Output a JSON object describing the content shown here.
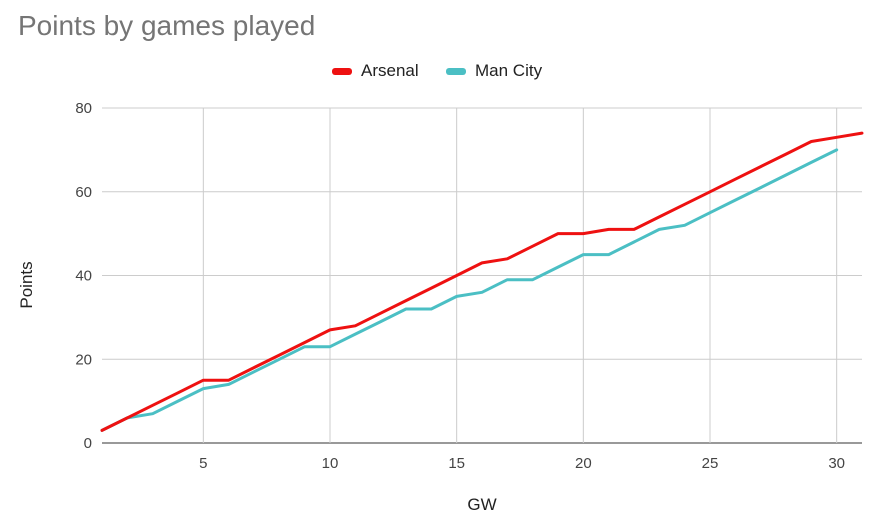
{
  "chart_data": {
    "type": "line",
    "title": "Points by games played",
    "xlabel": "GW",
    "ylabel": "Points",
    "xlim": [
      1,
      31
    ],
    "ylim": [
      0,
      80
    ],
    "xticks": [
      5,
      10,
      15,
      20,
      25,
      30
    ],
    "yticks": [
      0,
      20,
      40,
      60,
      80
    ],
    "grid": true,
    "legend_position": "top",
    "series": [
      {
        "name": "Arsenal",
        "color": "#ee1111",
        "x": [
          1,
          2,
          3,
          4,
          5,
          6,
          7,
          8,
          9,
          10,
          11,
          12,
          13,
          14,
          15,
          16,
          17,
          18,
          19,
          20,
          21,
          22,
          23,
          24,
          25,
          26,
          27,
          28,
          29,
          30,
          31
        ],
        "y": [
          3,
          6,
          9,
          12,
          15,
          15,
          18,
          21,
          24,
          27,
          28,
          31,
          34,
          37,
          40,
          43,
          44,
          47,
          50,
          50,
          51,
          51,
          54,
          57,
          60,
          63,
          66,
          69,
          72,
          73,
          74
        ]
      },
      {
        "name": "Man City",
        "color": "#4bbfc4",
        "x": [
          1,
          2,
          3,
          4,
          5,
          6,
          7,
          8,
          9,
          10,
          11,
          12,
          13,
          14,
          15,
          16,
          17,
          18,
          19,
          20,
          21,
          22,
          23,
          24,
          25,
          26,
          27,
          28,
          29,
          30
        ],
        "y": [
          3,
          6,
          7,
          10,
          13,
          14,
          17,
          20,
          23,
          23,
          26,
          29,
          32,
          32,
          35,
          36,
          39,
          39,
          42,
          45,
          45,
          48,
          51,
          52,
          55,
          58,
          61,
          64,
          67,
          70
        ]
      }
    ]
  }
}
